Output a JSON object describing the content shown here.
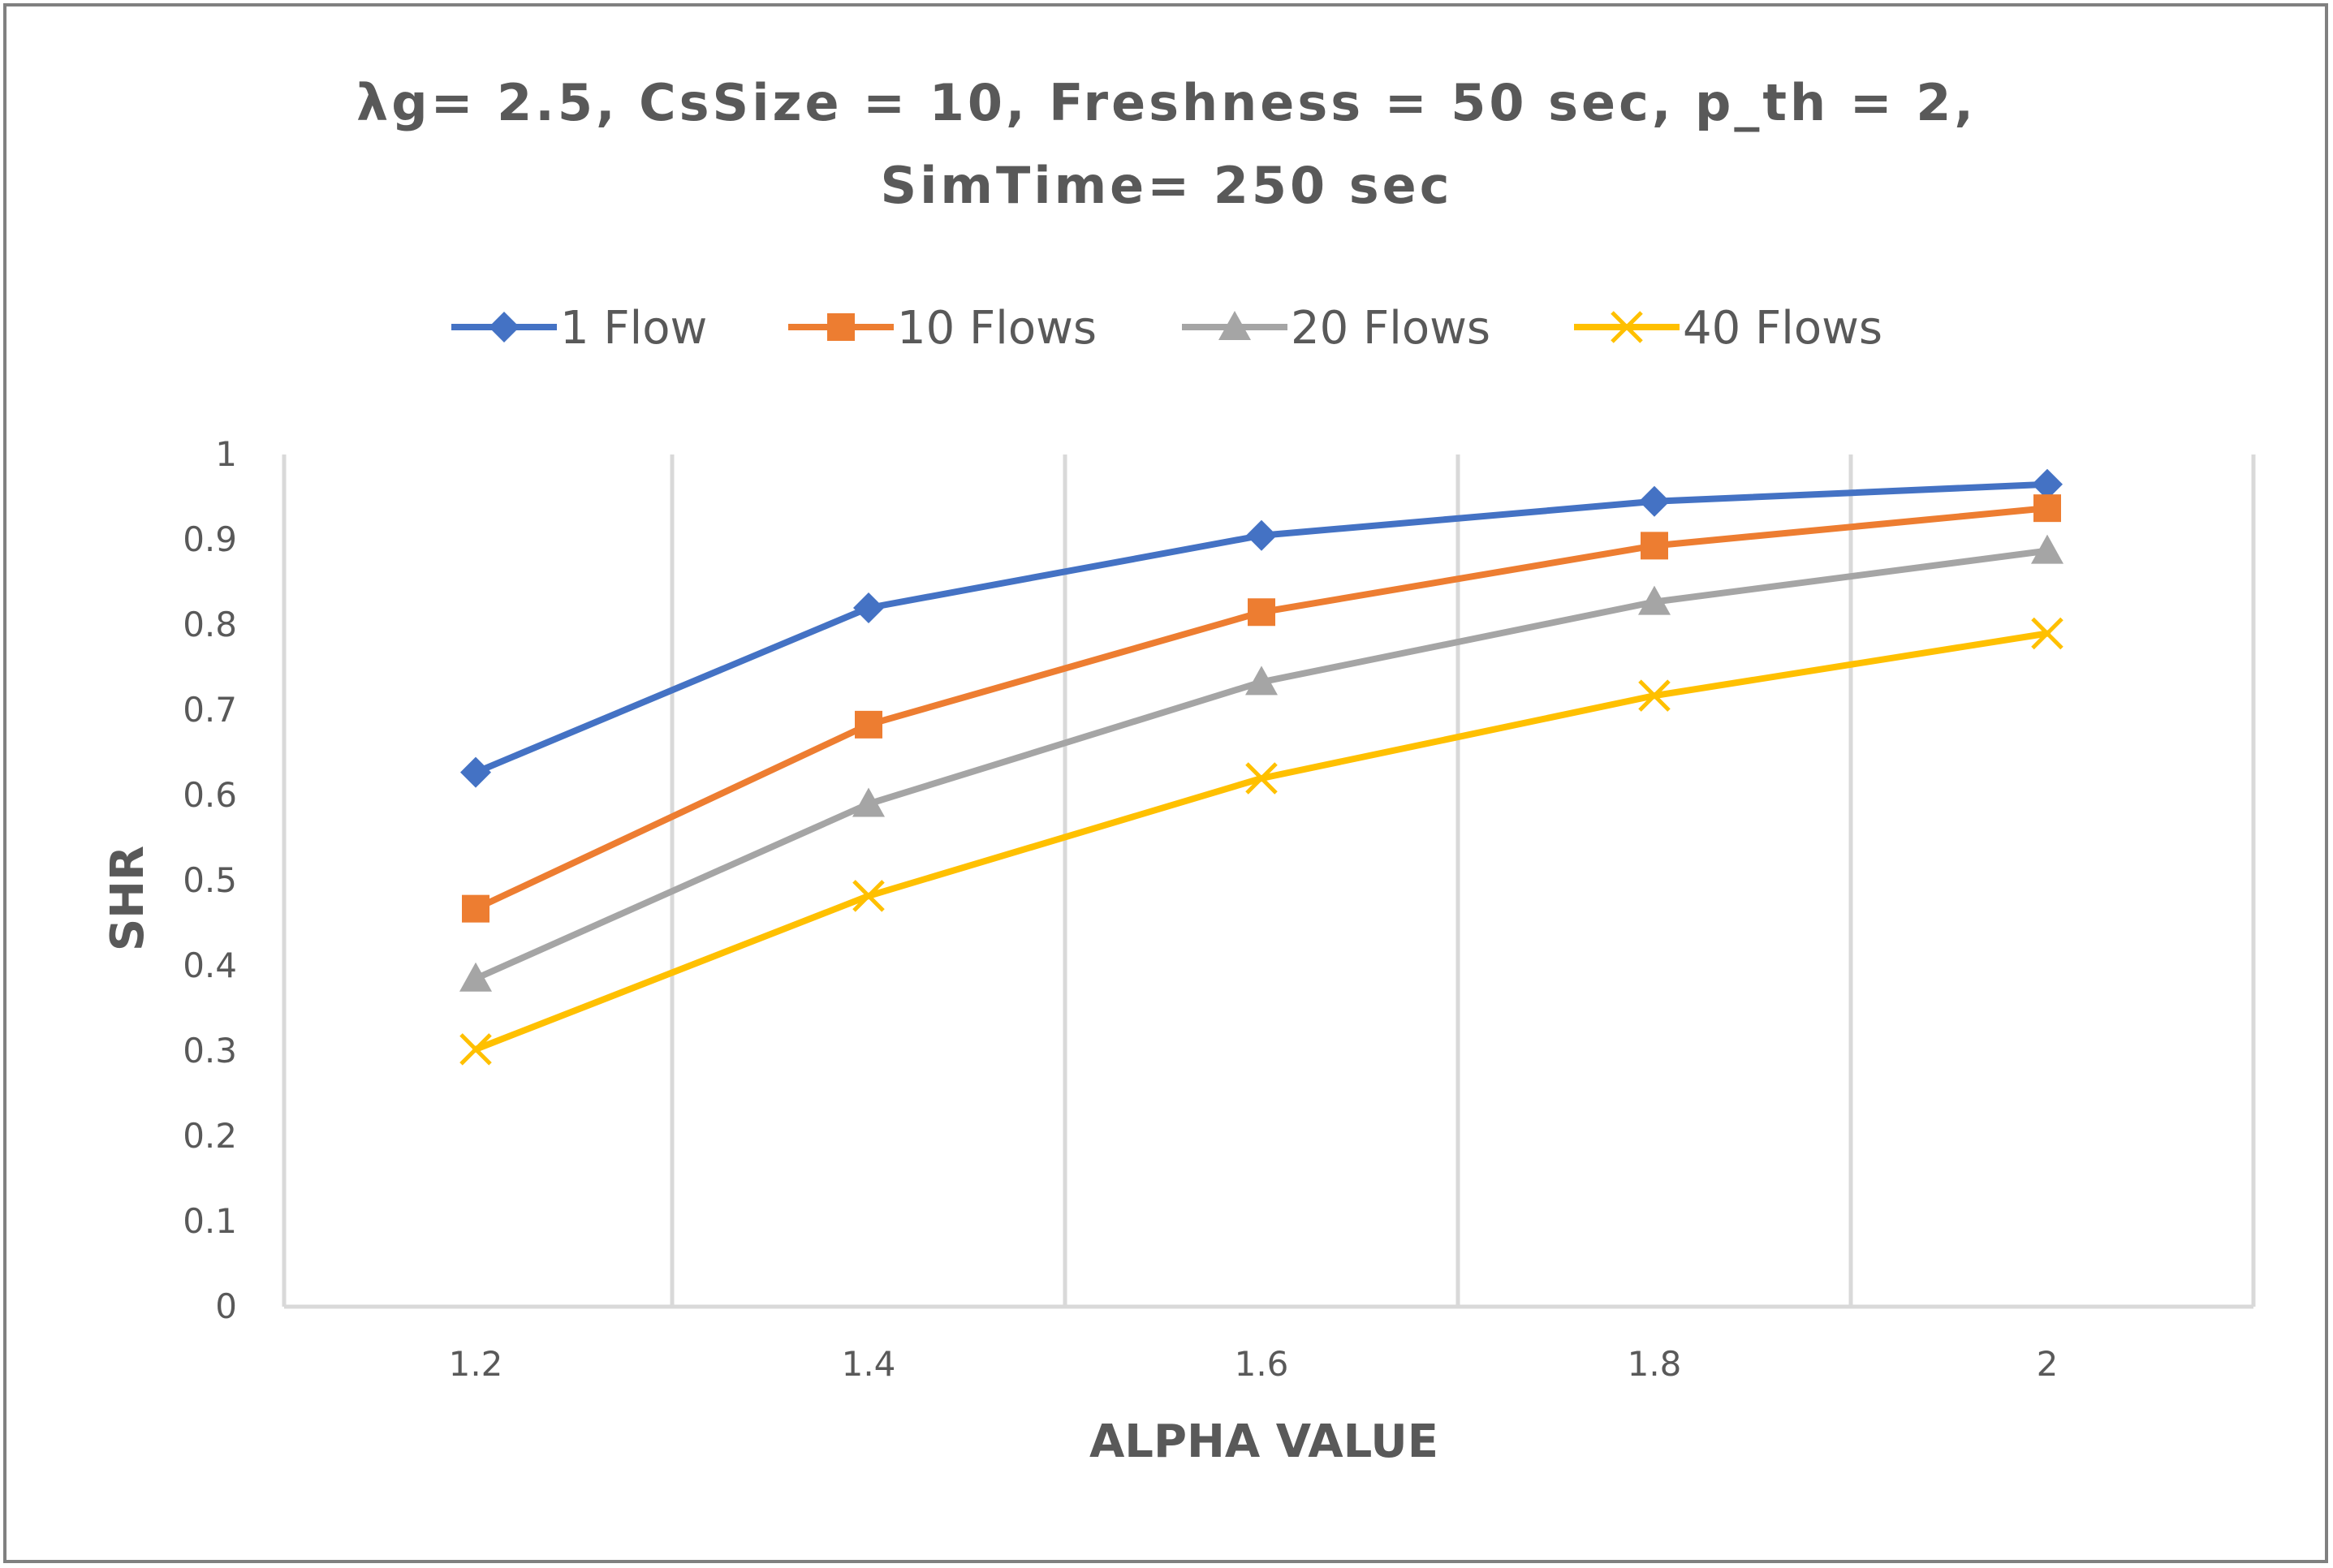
{
  "chart_data": {
    "type": "line",
    "title_lines": [
      "λg= 2.5, CsSize = 10, Freshness = 50 sec, p_th = 2,",
      "SimTime= 250 sec"
    ],
    "xlabel": "ALPHA VALUE",
    "ylabel": "SHR",
    "x": [
      1.2,
      1.4,
      1.6,
      1.8,
      2
    ],
    "x_tick_labels": [
      "1.2",
      "1.4",
      "1.6",
      "1.8",
      "2"
    ],
    "ylim": [
      0,
      1
    ],
    "y_ticks": [
      0,
      0.1,
      0.2,
      0.3,
      0.4,
      0.5,
      0.6,
      0.7,
      0.8,
      0.9,
      1
    ],
    "y_tick_labels": [
      "0",
      "0.1",
      "0.2",
      "0.3",
      "0.4",
      "0.5",
      "0.6",
      "0.7",
      "0.8",
      "0.9",
      "1"
    ],
    "grid": "vertical",
    "legend_position": "top",
    "series": [
      {
        "name": "1 Flow",
        "values": [
          0.627,
          0.82,
          0.905,
          0.945,
          0.965
        ],
        "color": "#4472C4",
        "marker": "diamond"
      },
      {
        "name": "10 Flows",
        "values": [
          0.467,
          0.683,
          0.815,
          0.893,
          0.937
        ],
        "color": "#ED7D31",
        "marker": "square"
      },
      {
        "name": "20 Flows",
        "values": [
          0.385,
          0.59,
          0.733,
          0.827,
          0.887
        ],
        "color": "#A5A5A5",
        "marker": "triangle"
      },
      {
        "name": "40 Flows",
        "values": [
          0.302,
          0.482,
          0.62,
          0.717,
          0.79
        ],
        "color": "#FFC000",
        "marker": "x"
      }
    ]
  }
}
